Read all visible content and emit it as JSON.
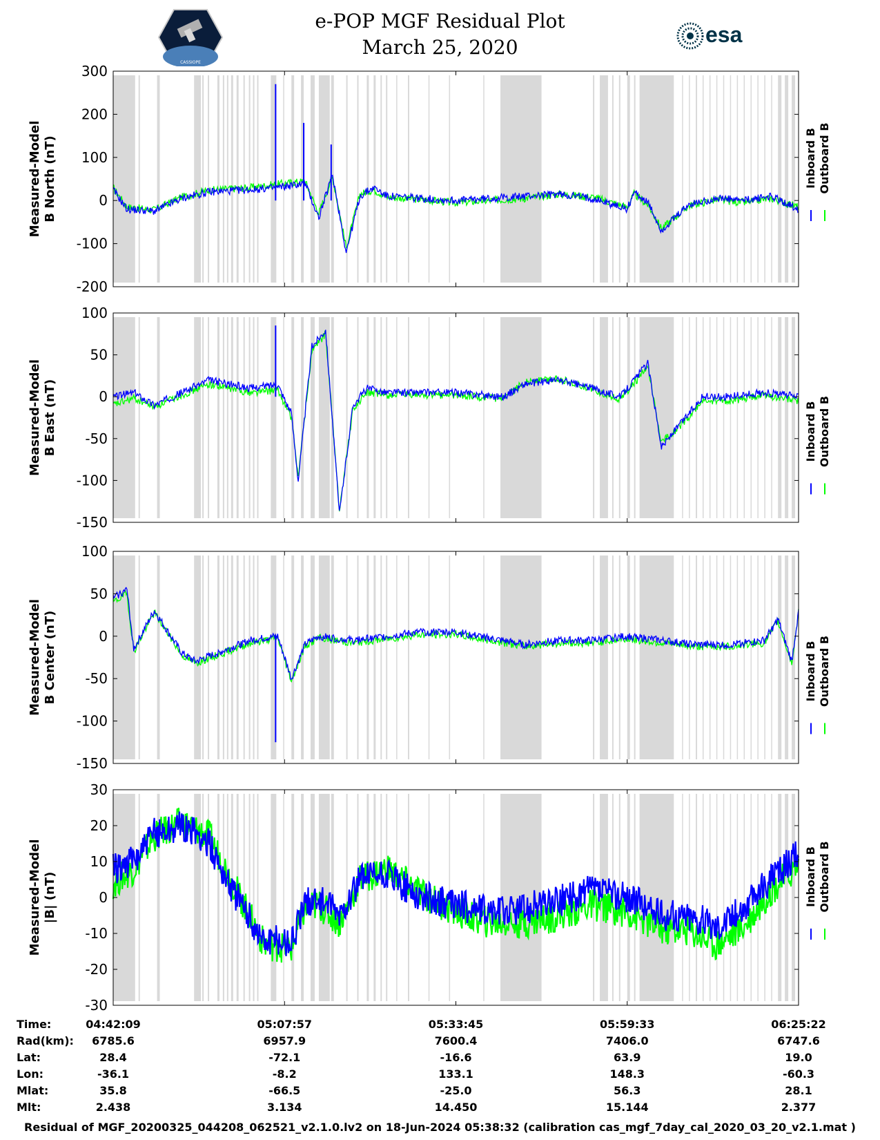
{
  "header": {
    "title": "e-POP MGF Residual Plot",
    "date": "March 25, 2020",
    "esa_logo_text": "esa",
    "cassiope_logo_text": "CASSIOPE"
  },
  "colors": {
    "inboard": "#0000ff",
    "outboard": "#00ff00",
    "gap": "#d9d9d9"
  },
  "chart_data": [
    {
      "type": "line",
      "ylabel": [
        "Measured-Model",
        "B North (nT)"
      ],
      "ylim": [
        -200,
        300
      ],
      "yticks": [
        300,
        200,
        100,
        0,
        -100,
        -200
      ],
      "legend": [
        "Inboard B",
        "Outboard B"
      ],
      "series": [
        {
          "name": "Inboard B",
          "x": [
            0,
            0.02,
            0.06,
            0.1,
            0.14,
            0.2,
            0.24,
            0.28,
            0.3,
            0.32,
            0.34,
            0.36,
            0.38,
            0.4,
            0.45,
            0.5,
            0.6,
            0.65,
            0.7,
            0.75,
            0.76,
            0.78,
            0.8,
            0.84,
            0.88,
            0.92,
            0.96,
            1.0
          ],
          "values": [
            25,
            -20,
            -25,
            5,
            20,
            25,
            30,
            40,
            -40,
            60,
            -120,
            10,
            30,
            10,
            5,
            0,
            10,
            15,
            5,
            -20,
            20,
            -5,
            -70,
            -10,
            5,
            0,
            10,
            -20
          ]
        },
        {
          "name": "Outboard B",
          "x": [
            0,
            0.02,
            0.06,
            0.1,
            0.14,
            0.2,
            0.24,
            0.28,
            0.3,
            0.32,
            0.34,
            0.36,
            0.38,
            0.4,
            0.45,
            0.5,
            0.6,
            0.65,
            0.7,
            0.75,
            0.76,
            0.78,
            0.8,
            0.84,
            0.88,
            0.92,
            0.96,
            1.0
          ],
          "values": [
            30,
            -15,
            -22,
            8,
            24,
            30,
            38,
            45,
            -30,
            55,
            -110,
            15,
            25,
            8,
            2,
            -5,
            5,
            15,
            8,
            -15,
            15,
            -10,
            -65,
            -12,
            2,
            -5,
            5,
            -15
          ]
        }
      ],
      "spikes": [
        {
          "x": 0.237,
          "value": 270
        },
        {
          "x": 0.278,
          "value": 180
        },
        {
          "x": 0.318,
          "value": 130
        }
      ]
    },
    {
      "type": "line",
      "ylabel": [
        "Measured-Model",
        "B East (nT)"
      ],
      "ylim": [
        -150,
        100
      ],
      "yticks": [
        100,
        50,
        0,
        -50,
        -100,
        -150
      ],
      "legend": [
        "Inboard B",
        "Outboard B"
      ],
      "series": [
        {
          "name": "Inboard B",
          "x": [
            0,
            0.03,
            0.06,
            0.1,
            0.14,
            0.2,
            0.24,
            0.26,
            0.27,
            0.29,
            0.31,
            0.33,
            0.35,
            0.37,
            0.4,
            0.5,
            0.57,
            0.6,
            0.65,
            0.7,
            0.74,
            0.78,
            0.8,
            0.84,
            0.86,
            0.9,
            0.95,
            1.0
          ],
          "values": [
            0,
            5,
            -10,
            5,
            20,
            10,
            15,
            -20,
            -100,
            60,
            80,
            -140,
            -10,
            10,
            5,
            5,
            0,
            15,
            20,
            10,
            0,
            40,
            -60,
            -20,
            0,
            0,
            5,
            0
          ]
        },
        {
          "name": "Outboard B",
          "x": [
            0,
            0.03,
            0.06,
            0.1,
            0.14,
            0.2,
            0.24,
            0.26,
            0.27,
            0.29,
            0.31,
            0.33,
            0.35,
            0.37,
            0.4,
            0.5,
            0.57,
            0.6,
            0.65,
            0.7,
            0.74,
            0.78,
            0.8,
            0.84,
            0.86,
            0.9,
            0.95,
            1.0
          ],
          "values": [
            -10,
            -2,
            -12,
            2,
            15,
            5,
            8,
            -25,
            -95,
            55,
            75,
            -135,
            -15,
            5,
            2,
            2,
            -3,
            18,
            22,
            8,
            -3,
            35,
            -55,
            -25,
            -5,
            -5,
            2,
            -5
          ]
        }
      ],
      "spikes": [
        {
          "x": 0.237,
          "value": 85
        }
      ]
    },
    {
      "type": "line",
      "ylabel": [
        "Measured-Model",
        "B Center (nT)"
      ],
      "ylim": [
        -150,
        100
      ],
      "yticks": [
        100,
        50,
        0,
        -50,
        -100,
        -150
      ],
      "legend": [
        "Inboard B",
        "Outboard B"
      ],
      "series": [
        {
          "name": "Inboard B",
          "x": [
            0,
            0.02,
            0.03,
            0.06,
            0.1,
            0.12,
            0.2,
            0.24,
            0.26,
            0.28,
            0.3,
            0.35,
            0.45,
            0.5,
            0.6,
            0.65,
            0.7,
            0.75,
            0.8,
            0.85,
            0.9,
            0.95,
            0.97,
            0.99,
            1.0
          ],
          "values": [
            45,
            55,
            -15,
            30,
            -20,
            -30,
            -5,
            0,
            -50,
            -10,
            0,
            -5,
            5,
            5,
            -10,
            -5,
            -5,
            0,
            -5,
            -10,
            -10,
            -5,
            20,
            -30,
            30
          ]
        },
        {
          "name": "Outboard B",
          "x": [
            0,
            0.02,
            0.03,
            0.06,
            0.1,
            0.12,
            0.2,
            0.24,
            0.26,
            0.28,
            0.3,
            0.35,
            0.45,
            0.5,
            0.6,
            0.65,
            0.7,
            0.75,
            0.8,
            0.85,
            0.9,
            0.95,
            0.97,
            0.99,
            1.0
          ],
          "values": [
            40,
            50,
            -18,
            28,
            -22,
            -32,
            -8,
            -2,
            -52,
            -12,
            -2,
            -8,
            2,
            2,
            -12,
            -8,
            -8,
            -3,
            -8,
            -12,
            -12,
            -8,
            18,
            -32,
            28
          ]
        }
      ],
      "spikes": [
        {
          "x": 0.237,
          "value": -125
        }
      ]
    },
    {
      "type": "line",
      "ylabel": [
        "Measured-Model",
        "|B| (nT)"
      ],
      "ylim": [
        -30,
        30
      ],
      "yticks": [
        30,
        20,
        10,
        0,
        -10,
        -20,
        -30
      ],
      "legend": [
        "Inboard B",
        "Outboard B"
      ],
      "series": [
        {
          "name": "Inboard B",
          "x": [
            0,
            0.03,
            0.06,
            0.1,
            0.14,
            0.18,
            0.22,
            0.26,
            0.28,
            0.3,
            0.33,
            0.36,
            0.4,
            0.45,
            0.5,
            0.55,
            0.6,
            0.65,
            0.7,
            0.75,
            0.8,
            0.84,
            0.88,
            0.92,
            0.96,
            1.0
          ],
          "values": [
            8,
            10,
            18,
            20,
            15,
            0,
            -12,
            -12,
            -2,
            0,
            -5,
            5,
            6,
            0,
            -2,
            -4,
            -3,
            -1,
            2,
            0,
            -5,
            -5,
            -8,
            -3,
            5,
            12
          ]
        },
        {
          "name": "Outboard B",
          "x": [
            0,
            0.03,
            0.06,
            0.1,
            0.14,
            0.18,
            0.22,
            0.26,
            0.28,
            0.3,
            0.33,
            0.36,
            0.4,
            0.45,
            0.5,
            0.55,
            0.6,
            0.65,
            0.7,
            0.75,
            0.8,
            0.84,
            0.88,
            0.92,
            0.96,
            1.0
          ],
          "values": [
            4,
            8,
            17,
            21,
            17,
            2,
            -13,
            -14,
            -3,
            -2,
            -7,
            5,
            8,
            1,
            -4,
            -7,
            -7,
            -5,
            -2,
            -4,
            -9,
            -9,
            -13,
            -8,
            2,
            9
          ]
        }
      ],
      "spikes": []
    }
  ],
  "gaps": [
    [
      0.0,
      0.032
    ],
    [
      0.037,
      0.039
    ],
    [
      0.064,
      0.068
    ],
    [
      0.118,
      0.128
    ],
    [
      0.13,
      0.132
    ],
    [
      0.138,
      0.14
    ],
    [
      0.152,
      0.155
    ],
    [
      0.16,
      0.162
    ],
    [
      0.166,
      0.168
    ],
    [
      0.172,
      0.175
    ],
    [
      0.18,
      0.183
    ],
    [
      0.19,
      0.192
    ],
    [
      0.198,
      0.2
    ],
    [
      0.204,
      0.206
    ],
    [
      0.21,
      0.212
    ],
    [
      0.23,
      0.238
    ],
    [
      0.248,
      0.249
    ],
    [
      0.26,
      0.264
    ],
    [
      0.274,
      0.278
    ],
    [
      0.288,
      0.294
    ],
    [
      0.3,
      0.316
    ],
    [
      0.318,
      0.322
    ],
    [
      0.34,
      0.342
    ],
    [
      0.356,
      0.358
    ],
    [
      0.37,
      0.373
    ],
    [
      0.38,
      0.383
    ],
    [
      0.39,
      0.392
    ],
    [
      0.398,
      0.4
    ],
    [
      0.413,
      0.414
    ],
    [
      0.43,
      0.432
    ],
    [
      0.46,
      0.461
    ],
    [
      0.49,
      0.491
    ],
    [
      0.54,
      0.541
    ],
    [
      0.565,
      0.625
    ],
    [
      0.7,
      0.702
    ],
    [
      0.71,
      0.722
    ],
    [
      0.728,
      0.73
    ],
    [
      0.738,
      0.74
    ],
    [
      0.75,
      0.754
    ],
    [
      0.76,
      0.762
    ],
    [
      0.768,
      0.818
    ],
    [
      0.83,
      0.831
    ],
    [
      0.84,
      0.841
    ],
    [
      0.85,
      0.852
    ],
    [
      0.86,
      0.861
    ],
    [
      0.87,
      0.871
    ],
    [
      0.88,
      0.881
    ],
    [
      0.89,
      0.891
    ],
    [
      0.9,
      0.901
    ],
    [
      0.91,
      0.911
    ],
    [
      0.92,
      0.921
    ],
    [
      0.93,
      0.931
    ],
    [
      0.94,
      0.941
    ],
    [
      0.95,
      0.951
    ],
    [
      0.96,
      0.961
    ],
    [
      0.97,
      0.975
    ],
    [
      0.98,
      0.985
    ],
    [
      0.99,
      0.995
    ]
  ],
  "orbit_table": {
    "labels": [
      "Time:",
      "Rad(km):",
      "Lat:",
      "Lon:",
      "Mlat:",
      "Mlt:"
    ],
    "columns": [
      [
        "04:42:09",
        "6785.6",
        "28.4",
        "-36.1",
        "35.8",
        "2.438"
      ],
      [
        "05:07:57",
        "6957.9",
        "-72.1",
        "-8.2",
        "-66.5",
        "3.134"
      ],
      [
        "05:33:45",
        "7600.4",
        "-16.6",
        "133.1",
        "-25.0",
        "14.450"
      ],
      [
        "05:59:33",
        "7406.0",
        "63.9",
        "148.3",
        "56.3",
        "15.144"
      ],
      [
        "06:25:22",
        "6747.6",
        "19.0",
        "-60.3",
        "28.1",
        "2.377"
      ]
    ]
  },
  "footer": "Residual of MGF_20200325_044208_062521_v2.1.0.lv2 on 18-Jun-2024 05:38:32 (calibration cas_mgf_7day_cal_2020_03_20_v2.1.mat )"
}
